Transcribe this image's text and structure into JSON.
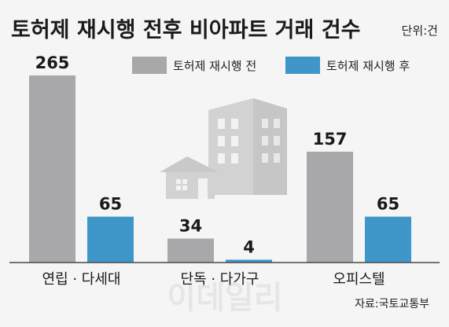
{
  "chart_data": {
    "type": "bar",
    "title": "토허제 재시행 전후 비아파트 거래 건수",
    "unit": "단위:건",
    "categories": [
      "연립 · 다세대",
      "단독 · 다가구",
      "오피스텔"
    ],
    "series": [
      {
        "name": "토허제 재시행 전",
        "values": [
          265,
          34,
          157
        ],
        "color": "#a8a8aa"
      },
      {
        "name": "토허제 재시행 후",
        "values": [
          65,
          4,
          65
        ],
        "color": "#3f96c9"
      }
    ],
    "ylim": [
      0,
      265
    ],
    "grid": false,
    "legend": "top-right",
    "source": "자료:국토교통부"
  },
  "watermark": "이데일리",
  "decoration": {
    "illustration": "buildings-icon",
    "color": "#d7d7d7"
  }
}
